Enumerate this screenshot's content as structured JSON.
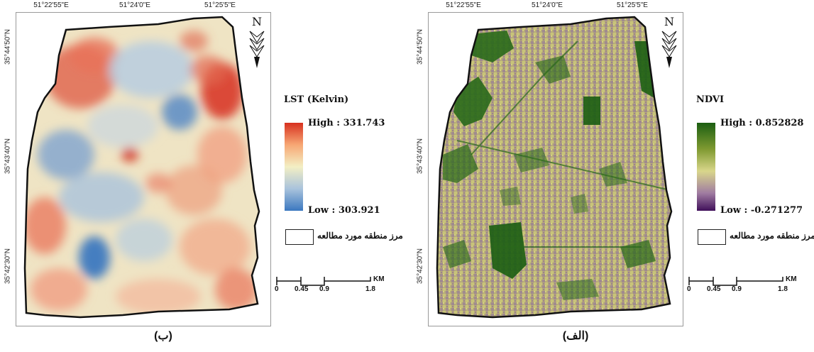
{
  "panels": {
    "left": {
      "caption": "(ب)",
      "legend_title": "LST (Kelvin)",
      "legend_high": "High : 331.743",
      "legend_low": "Low : 303.921",
      "ramp_colors": [
        "#d7301f",
        "#f7a774",
        "#f3efc4",
        "#a9c3dc",
        "#3b78c0"
      ]
    },
    "right": {
      "caption": "(الف)",
      "legend_title": "NDVI",
      "legend_high": "High : 0.852828",
      "legend_low": "Low : -0.271277",
      "ramp_colors": [
        "#1b5e12",
        "#7f9a31",
        "#d9d68b",
        "#a07ca1",
        "#40105a"
      ]
    }
  },
  "boundary_label": "مرز منطقه مورد مطالعه",
  "north_label": "N",
  "coords": {
    "top": [
      "51°22'55\"E",
      "51°24'0\"E",
      "51°25'5\"E"
    ],
    "left": [
      "35°44'50\"N",
      "35°43'40\"N",
      "35°42'30\"N"
    ]
  },
  "scalebar": {
    "unit": "KM",
    "ticks": [
      "0",
      "0.45",
      "0.9",
      "1.8"
    ]
  }
}
